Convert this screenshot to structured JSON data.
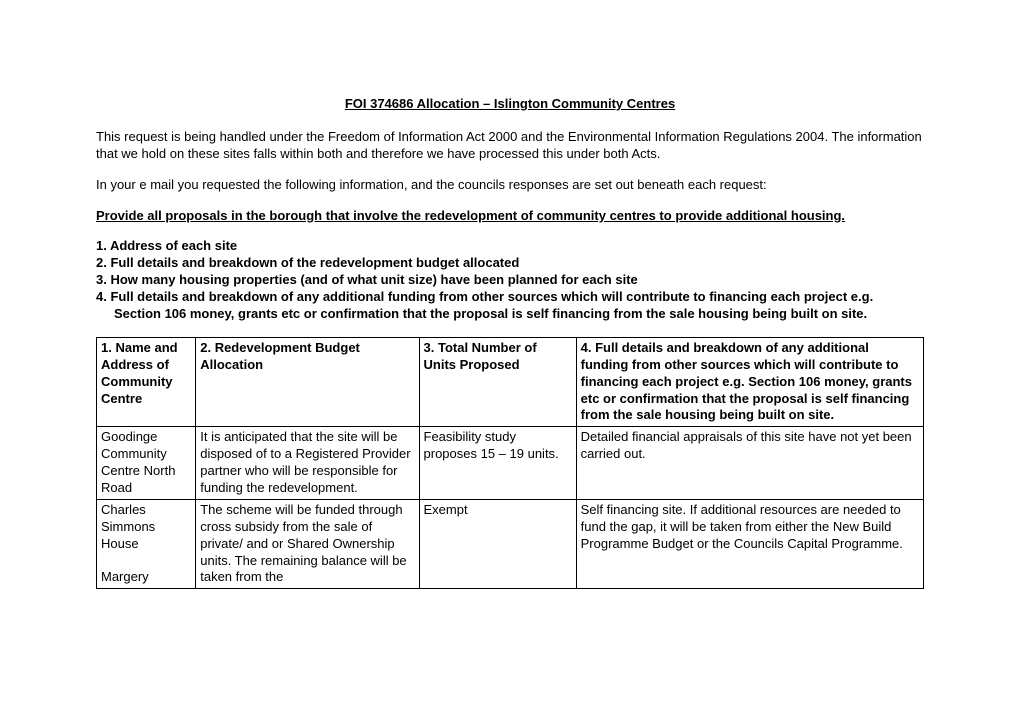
{
  "title": "FOI 374686 Allocation – Islington Community Centres",
  "para1": "This request is being handled under the Freedom of Information Act 2000 and the Environmental Information Regulations 2004. The information that we hold on these sites falls within both and therefore we have processed this under both Acts.",
  "para2": "In your e mail you requested the following information, and the councils responses are set out beneath each request:",
  "request_heading": "Provide all proposals in the borough that involve the redevelopment of community centres to provide additional housing.",
  "list": {
    "i1": "1. Address of each site",
    "i2": "2. Full details and breakdown of the redevelopment budget allocated",
    "i3": "3. How many housing properties (and of what unit size) have been planned for each site",
    "i4a": "4. Full details and breakdown of any additional funding from other sources which will contribute to financing each project e.g.",
    "i4b": "Section 106 money, grants etc or confirmation that the proposal is self financing from the sale housing being built on site."
  },
  "table": {
    "headers": {
      "h1": "1. Name and Address of Community Centre",
      "h2": "2. Redevelopment Budget Allocation",
      "h3": "3. Total Number of Units Proposed",
      "h4": "4. Full details and breakdown of any additional funding from other sources which will contribute to financing each project e.g. Section 106 money, grants etc or confirmation that the proposal is self financing from the sale housing being built on site."
    },
    "rows": [
      {
        "c1": "Goodinge Community Centre North Road",
        "c2": "It is anticipated that the site will be disposed of to a Registered Provider partner who will be responsible for funding the redevelopment.",
        "c3": "Feasibility study proposes 15 – 19 units.",
        "c4": "Detailed financial appraisals of this site have not yet been carried out."
      },
      {
        "c1": "Charles Simmons House\n\nMargery",
        "c2": "The scheme will be funded through cross subsidy from the sale of private/ and or Shared Ownership units. The remaining balance will be taken from the",
        "c3": "Exempt",
        "c4": "Self financing site. If additional resources are needed to fund the gap, it will be taken from either the New Build Programme Budget or the Councils Capital Programme."
      }
    ]
  }
}
